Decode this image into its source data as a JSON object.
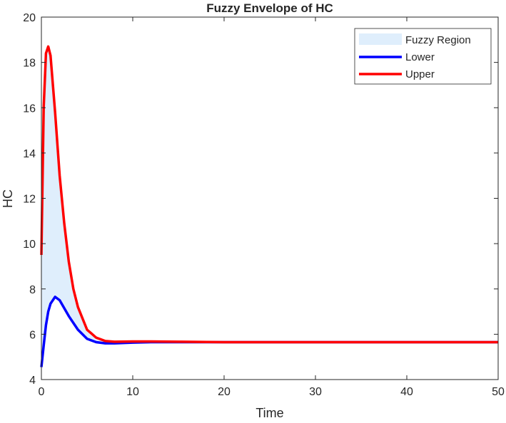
{
  "chart_data": {
    "type": "line",
    "title": "Fuzzy Envelope of HC",
    "xlabel": "Time",
    "ylabel": "HC",
    "xlim": [
      0,
      50
    ],
    "ylim": [
      4,
      20
    ],
    "xticks": [
      0,
      10,
      20,
      30,
      40,
      50
    ],
    "yticks": [
      4,
      6,
      8,
      10,
      12,
      14,
      16,
      18,
      20
    ],
    "grid": false,
    "legend_position": "top-right",
    "legend": [
      "Fuzzy Region",
      "Lower",
      "Upper"
    ],
    "colors": {
      "fill": "#dfeefc",
      "lower": "#0000ff",
      "upper": "#ff0000"
    },
    "x": [
      0,
      0.25,
      0.5,
      0.75,
      1,
      1.5,
      2,
      2.5,
      3,
      3.5,
      4,
      5,
      6,
      7,
      8,
      10,
      12,
      15,
      20,
      30,
      40,
      50
    ],
    "series": [
      {
        "name": "Lower",
        "values": [
          4.55,
          5.5,
          6.4,
          7.0,
          7.35,
          7.65,
          7.5,
          7.15,
          6.8,
          6.5,
          6.2,
          5.8,
          5.65,
          5.6,
          5.6,
          5.63,
          5.65,
          5.65,
          5.65,
          5.65,
          5.65,
          5.65
        ]
      },
      {
        "name": "Upper",
        "values": [
          9.5,
          16.0,
          18.4,
          18.7,
          18.3,
          15.8,
          13.0,
          10.9,
          9.2,
          8.0,
          7.2,
          6.2,
          5.85,
          5.7,
          5.67,
          5.68,
          5.68,
          5.67,
          5.65,
          5.65,
          5.65,
          5.65
        ]
      }
    ]
  }
}
